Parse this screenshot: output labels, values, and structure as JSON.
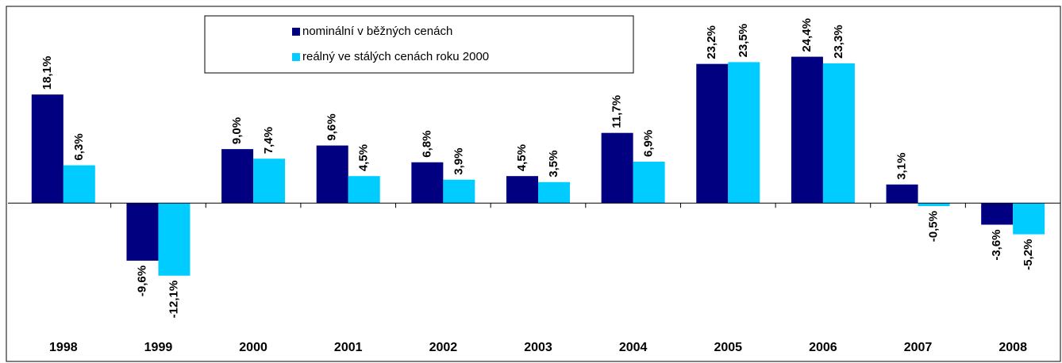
{
  "chart_data": {
    "type": "bar",
    "categories": [
      "1998",
      "1999",
      "2000",
      "2001",
      "2002",
      "2003",
      "2004",
      "2005",
      "2006",
      "2007",
      "2008"
    ],
    "series": [
      {
        "name": "nominální v běžných cenách",
        "color": "#000080",
        "values": [
          18.1,
          -9.6,
          9.0,
          9.6,
          6.8,
          4.5,
          11.7,
          23.2,
          24.4,
          3.1,
          -3.6
        ],
        "value_labels": [
          "18,1%",
          "-9,6%",
          "9,0%",
          "9,6%",
          "6,8%",
          "4,5%",
          "11,7%",
          "23,2%",
          "24,4%",
          "3,1%",
          "-3,6%"
        ]
      },
      {
        "name": "reálný ve stálých cenách roku 2000",
        "color": "#00CCFF",
        "values": [
          6.3,
          -12.1,
          7.4,
          4.5,
          3.9,
          3.5,
          6.9,
          23.5,
          23.3,
          -0.5,
          -5.2
        ],
        "value_labels": [
          "6,3%",
          "-12,1%",
          "7,4%",
          "4,5%",
          "3,9%",
          "3,5%",
          "6,9%",
          "23,5%",
          "23,3%",
          "-0,5%",
          "-5,2%"
        ]
      }
    ],
    "ylim": [
      -22.3,
      32.8
    ]
  }
}
